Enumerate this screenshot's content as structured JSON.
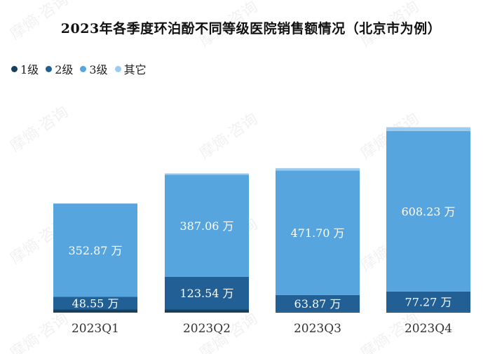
{
  "chart_data": {
    "type": "bar",
    "stacked": true,
    "title": "2023年各季度环泊酚不同等级医院销售额情况（北京市为例）",
    "categories": [
      "2023Q1",
      "2023Q2",
      "2023Q3",
      "2023Q4"
    ],
    "unit": "万",
    "series": [
      {
        "name": "1级",
        "color": "#173f5f",
        "values": [
          12.0,
          12.0,
          3.0,
          3.0
        ],
        "labels": [
          "",
          "",
          "",
          ""
        ]
      },
      {
        "name": "2级",
        "color": "#215f94",
        "values": [
          48.55,
          123.54,
          63.87,
          77.27
        ],
        "labels": [
          "48.55 万",
          "123.54 万",
          "63.87 万",
          "77.27 万"
        ]
      },
      {
        "name": "3级",
        "color": "#56a5df",
        "values": [
          352.87,
          387.06,
          471.7,
          608.23
        ],
        "labels": [
          "352.87 万",
          "387.06 万",
          "471.70 万",
          "608.23 万"
        ]
      },
      {
        "name": "其它",
        "color": "#9ccbf0",
        "values": [
          0,
          5.0,
          9.0,
          14.0
        ],
        "labels": [
          "",
          "",
          "",
          ""
        ]
      }
    ],
    "legend_position": "top-left",
    "grid": false
  },
  "watermark": "摩熵·咨询"
}
